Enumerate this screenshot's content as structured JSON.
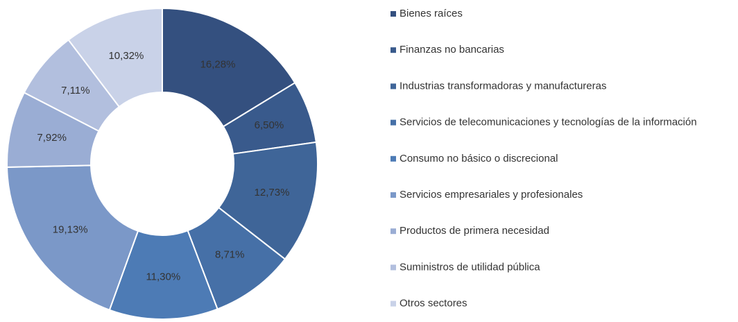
{
  "chart_data": {
    "type": "donut",
    "categories": [
      "Bienes raíces",
      "Finanzas no bancarias",
      "Industrias transformadoras y manufactureras",
      "Servicios de telecomunicaciones y tecnologías de la información",
      "Consumo no básico o discrecional",
      "Servicios empresariales y profesionales",
      "Productos de primera necesidad",
      "Suministros de utilidad pública",
      "Otros sectores"
    ],
    "values": [
      16.28,
      6.5,
      12.73,
      8.71,
      11.3,
      19.13,
      7.92,
      7.11,
      10.32
    ],
    "value_labels": [
      "16,28%",
      "6,50%",
      "12,73%",
      "8,71%",
      "11,30%",
      "19,13%",
      "7,92%",
      "7,11%",
      "10,32%"
    ],
    "colors": [
      "#34507f",
      "#395a8c",
      "#3f6598",
      "#4670a7",
      "#4d7bb5",
      "#7b98c8",
      "#9aadd4",
      "#b2bfde",
      "#c9d2e8"
    ],
    "legend": "right"
  }
}
